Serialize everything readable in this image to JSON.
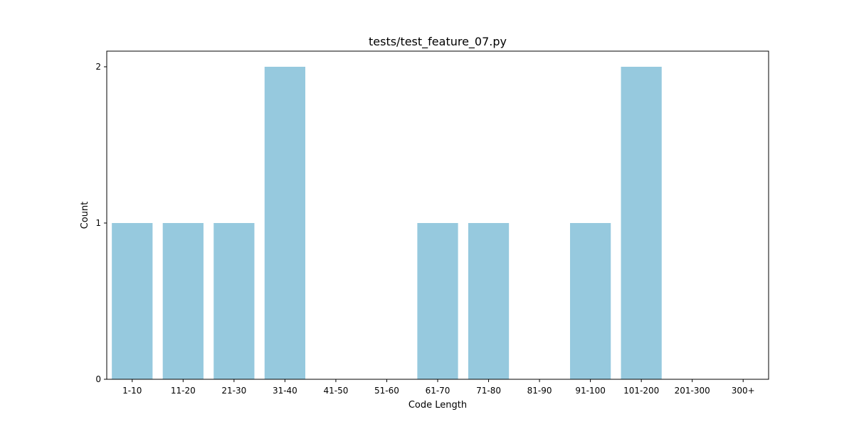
{
  "chart_data": {
    "type": "bar",
    "title": "tests/test_feature_07.py",
    "xlabel": "Code Length",
    "ylabel": "Count",
    "categories": [
      "1-10",
      "11-20",
      "21-30",
      "31-40",
      "41-50",
      "51-60",
      "61-70",
      "71-80",
      "81-90",
      "91-100",
      "101-200",
      "201-300",
      "300+"
    ],
    "values": [
      1,
      1,
      1,
      2,
      0,
      0,
      1,
      1,
      0,
      1,
      2,
      0,
      0
    ],
    "ylim": [
      0,
      2.1
    ],
    "yticks": [
      "0",
      "1",
      "2"
    ],
    "grid": false,
    "legend": "none",
    "bar_color": "#96c9de",
    "axis_color": "#000000"
  }
}
